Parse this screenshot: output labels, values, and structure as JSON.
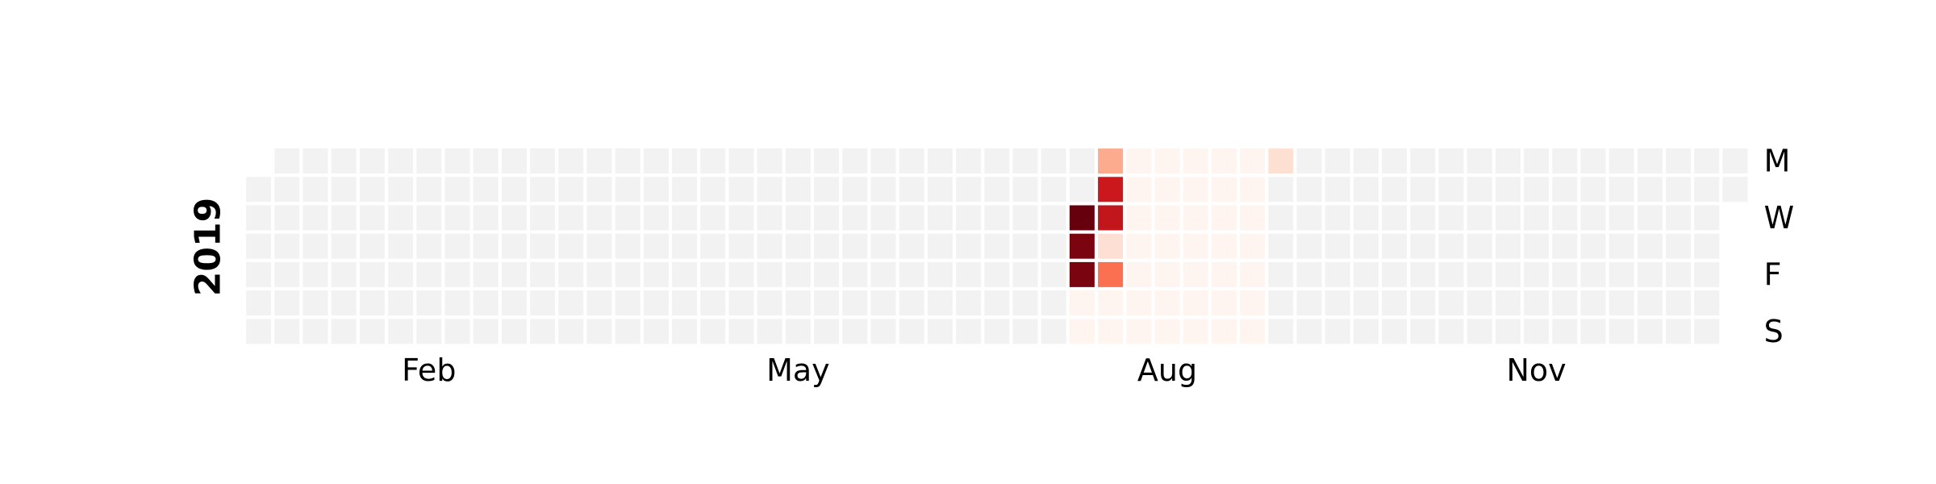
{
  "chart_data": {
    "type": "heatmap",
    "calendar": "github-style daily calendar heatmap",
    "year": "2019",
    "colormap": "Reds",
    "empty_color": "#f2f2f2",
    "x_tick_labels": [
      "Feb",
      "May",
      "Aug",
      "Nov"
    ],
    "y_tick_labels": [
      "M",
      "W",
      "F",
      "S"
    ],
    "grid": false,
    "cells": [
      {
        "date": "2019-07-24",
        "color": "#67000d"
      },
      {
        "date": "2019-07-25",
        "color": "#7a0510"
      },
      {
        "date": "2019-07-26",
        "color": "#7a0510"
      },
      {
        "date": "2019-07-27",
        "color": "#fff5f0"
      },
      {
        "date": "2019-07-28",
        "color": "#fff5f0"
      },
      {
        "date": "2019-07-29",
        "color": "#fcab8f"
      },
      {
        "date": "2019-07-30",
        "color": "#cb181d"
      },
      {
        "date": "2019-07-31",
        "color": "#c0161c"
      },
      {
        "date": "2019-08-01",
        "color": "#fedfd3"
      },
      {
        "date": "2019-08-02",
        "color": "#fb7050"
      },
      {
        "date": "2019-08-03",
        "color": "#fff5f0"
      },
      {
        "date": "2019-08-04",
        "color": "#fff5f0"
      },
      {
        "date": "2019-08-05",
        "color": "#fff5f0"
      },
      {
        "date": "2019-08-06",
        "color": "#fff5f0"
      },
      {
        "date": "2019-08-07",
        "color": "#fff5f0"
      },
      {
        "date": "2019-08-08",
        "color": "#fff5f0"
      },
      {
        "date": "2019-08-09",
        "color": "#fff5f0"
      },
      {
        "date": "2019-08-10",
        "color": "#fff5f0"
      },
      {
        "date": "2019-08-11",
        "color": "#fff5f0"
      },
      {
        "date": "2019-08-12",
        "color": "#fff5f0"
      },
      {
        "date": "2019-08-13",
        "color": "#fff5f0"
      },
      {
        "date": "2019-08-14",
        "color": "#fff5f0"
      },
      {
        "date": "2019-08-15",
        "color": "#fff5f0"
      },
      {
        "date": "2019-08-16",
        "color": "#fff5f0"
      },
      {
        "date": "2019-08-17",
        "color": "#fff5f0"
      },
      {
        "date": "2019-08-18",
        "color": "#fff5f0"
      },
      {
        "date": "2019-08-19",
        "color": "#fff5f0"
      },
      {
        "date": "2019-08-20",
        "color": "#fff5f0"
      },
      {
        "date": "2019-08-21",
        "color": "#fff5f0"
      },
      {
        "date": "2019-08-22",
        "color": "#fff5f0"
      },
      {
        "date": "2019-08-23",
        "color": "#fff5f0"
      },
      {
        "date": "2019-08-24",
        "color": "#fff5f0"
      },
      {
        "date": "2019-08-25",
        "color": "#fff5f0"
      },
      {
        "date": "2019-08-26",
        "color": "#fff5f0"
      },
      {
        "date": "2019-08-27",
        "color": "#fff5f0"
      },
      {
        "date": "2019-08-28",
        "color": "#fff5f0"
      },
      {
        "date": "2019-08-29",
        "color": "#fff5f0"
      },
      {
        "date": "2019-08-30",
        "color": "#fff5f0"
      },
      {
        "date": "2019-08-31",
        "color": "#fff5f0"
      },
      {
        "date": "2019-09-01",
        "color": "#fff5f0"
      },
      {
        "date": "2019-09-02",
        "color": "#fff5f0"
      },
      {
        "date": "2019-09-03",
        "color": "#fff5f0"
      },
      {
        "date": "2019-09-04",
        "color": "#fff5f0"
      },
      {
        "date": "2019-09-05",
        "color": "#fff5f0"
      },
      {
        "date": "2019-09-06",
        "color": "#fff5f0"
      },
      {
        "date": "2019-09-07",
        "color": "#fff5f0"
      },
      {
        "date": "2019-09-08",
        "color": "#fff5f0"
      },
      {
        "date": "2019-09-09",
        "color": "#fee0d2"
      }
    ]
  }
}
